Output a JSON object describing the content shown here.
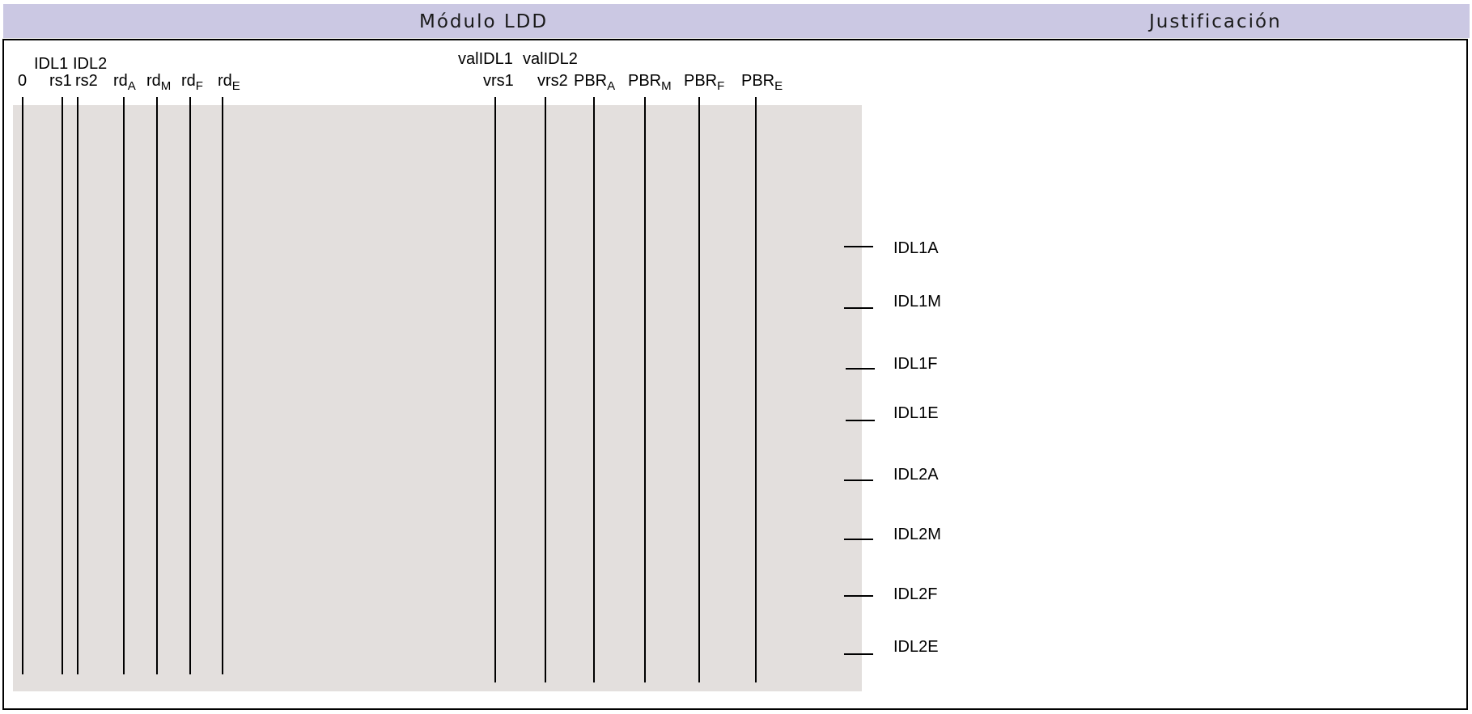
{
  "header": {
    "left_title": "Módulo LDD",
    "right_title": "Justificación",
    "background": "#cbc8e3"
  },
  "panel": {
    "background": "#e3dfdd"
  },
  "inputs_top_row": {
    "idl1": "IDL1",
    "idl2": "IDL2",
    "validl1": "valIDL1",
    "validl2": "valIDL2"
  },
  "inputs": [
    {
      "base": "0",
      "sub": ""
    },
    {
      "base": "rs1",
      "sub": ""
    },
    {
      "base": "rs2",
      "sub": ""
    },
    {
      "base": "rd",
      "sub": "A"
    },
    {
      "base": "rd",
      "sub": "M"
    },
    {
      "base": "rd",
      "sub": "F"
    },
    {
      "base": "rd",
      "sub": "E"
    },
    {
      "base": "vrs1",
      "sub": ""
    },
    {
      "base": "vrs2",
      "sub": ""
    },
    {
      "base": "PBR",
      "sub": "A"
    },
    {
      "base": "PBR",
      "sub": "M"
    },
    {
      "base": "PBR",
      "sub": "F"
    },
    {
      "base": "PBR",
      "sub": "E"
    }
  ],
  "outputs": [
    "IDL1A",
    "IDL1M",
    "IDL1F",
    "IDL1E",
    "IDL2A",
    "IDL2M",
    "IDL2F",
    "IDL2E"
  ]
}
